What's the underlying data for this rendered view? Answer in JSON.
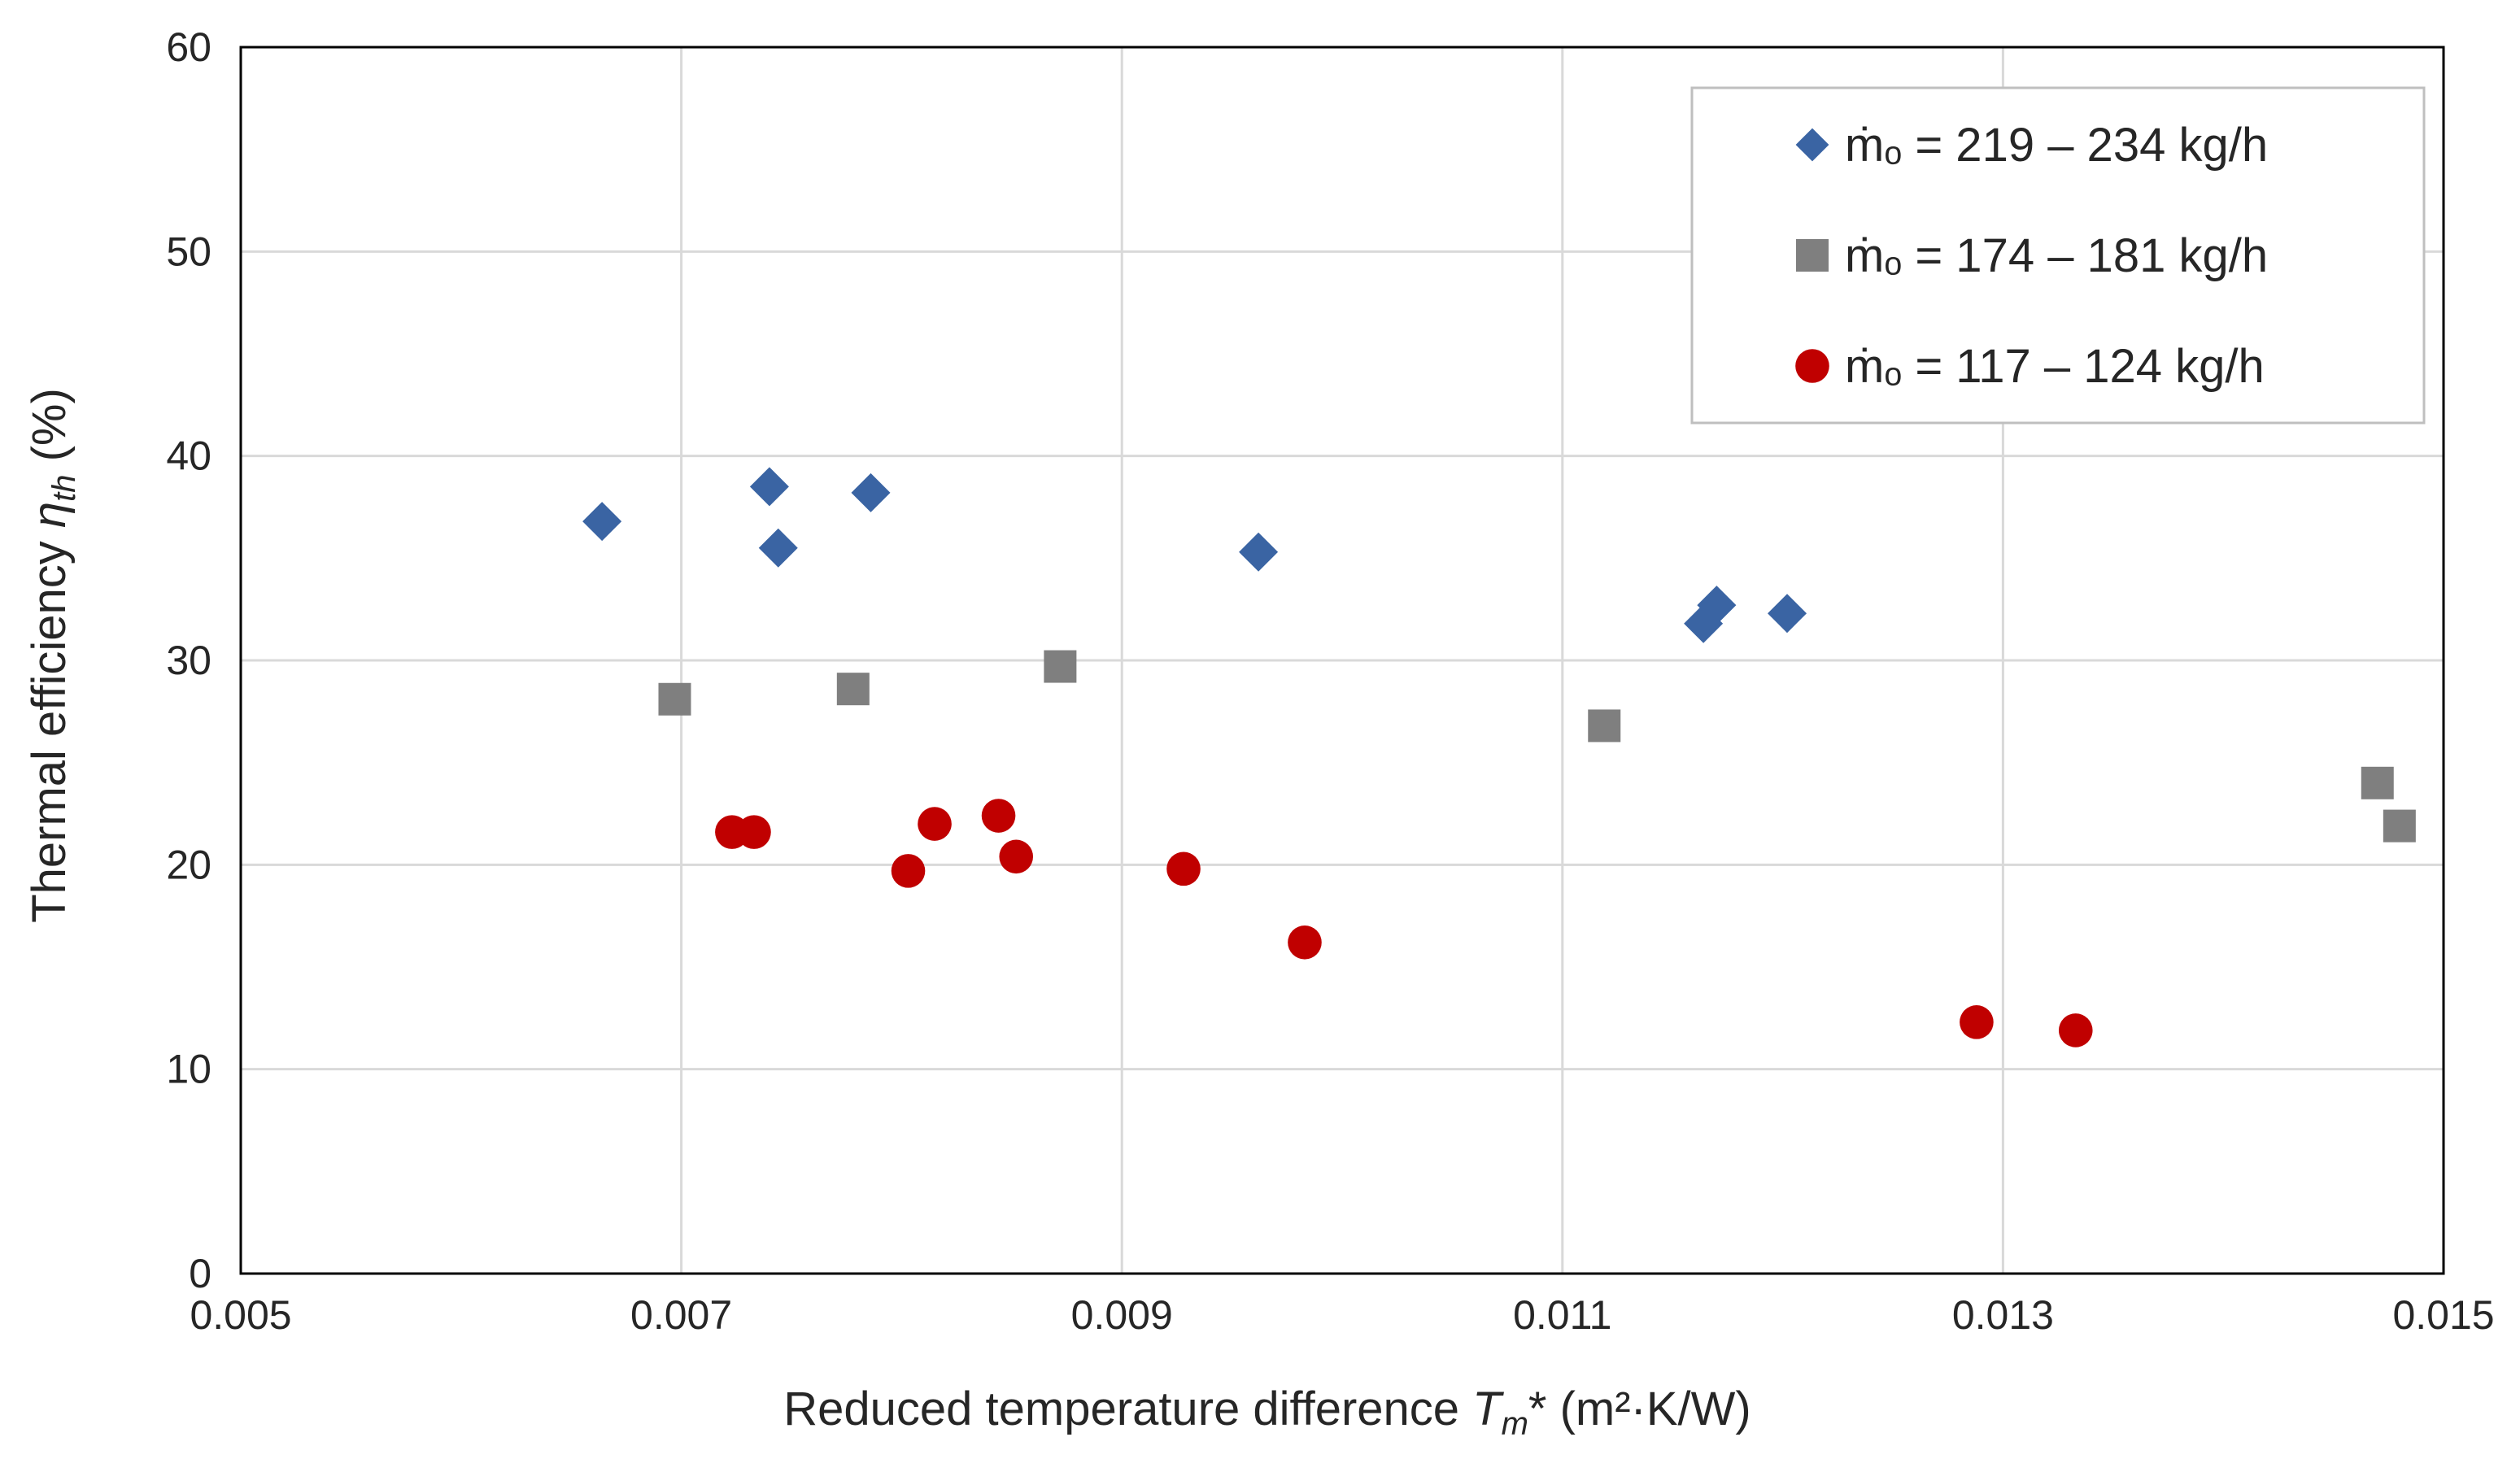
{
  "chart_data": {
    "type": "scatter",
    "title": "",
    "xlabel": {
      "prefix": "Reduced temperature difference ",
      "symbol": "T",
      "sub": "m",
      "suffix": "* (m²·K/W)"
    },
    "ylabel": {
      "prefix": "Thermal efficiency ",
      "symbol": "η",
      "sub": "th",
      "suffix": " (%)"
    },
    "xlim": [
      0.005,
      0.015
    ],
    "ylim": [
      0,
      60
    ],
    "xticks": [
      "0.005",
      "0.007",
      "0.009",
      "0.011",
      "0.013",
      "0.015"
    ],
    "yticks": [
      "0",
      "10",
      "20",
      "30",
      "40",
      "50",
      "60"
    ],
    "grid": true,
    "legend_position": "top-right",
    "series": [
      {
        "name": "ṁₒ = 219 – 234 kg/h",
        "marker": "diamond",
        "color": "#3A64A3",
        "points": [
          [
            0.00664,
            36.8
          ],
          [
            0.0074,
            38.5
          ],
          [
            0.00744,
            35.5
          ],
          [
            0.00786,
            38.2
          ],
          [
            0.00962,
            35.3
          ],
          [
            0.01164,
            31.8
          ],
          [
            0.0117,
            32.7
          ],
          [
            0.01202,
            32.3
          ]
        ]
      },
      {
        "name": "ṁₒ = 174 – 181 kg/h",
        "marker": "square",
        "color": "#7F7F7F",
        "points": [
          [
            0.00697,
            28.1
          ],
          [
            0.00778,
            28.6
          ],
          [
            0.00872,
            29.7
          ],
          [
            0.01119,
            26.8
          ],
          [
            0.0147,
            24.0
          ],
          [
            0.0148,
            21.9
          ]
        ]
      },
      {
        "name": "ṁₒ = 117 – 124 kg/h",
        "marker": "circle",
        "color": "#C00000",
        "points": [
          [
            0.00723,
            21.6
          ],
          [
            0.00733,
            21.6
          ],
          [
            0.00803,
            19.7
          ],
          [
            0.00815,
            22.0
          ],
          [
            0.00844,
            22.4
          ],
          [
            0.00852,
            20.4
          ],
          [
            0.00928,
            19.8
          ],
          [
            0.00983,
            16.2
          ],
          [
            0.01288,
            12.3
          ],
          [
            0.01333,
            11.9
          ]
        ]
      }
    ]
  }
}
